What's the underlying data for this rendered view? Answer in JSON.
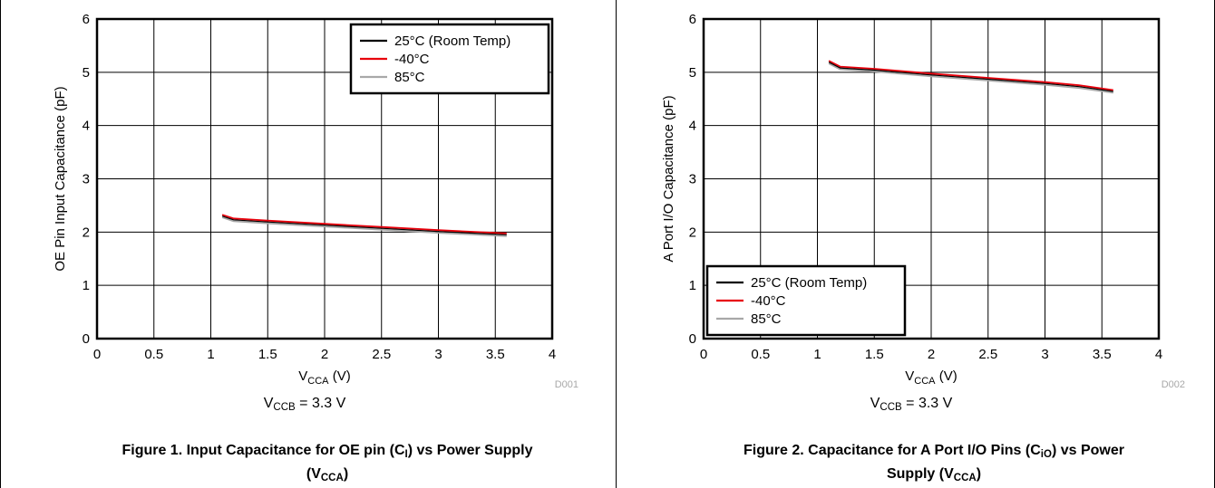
{
  "charts": [
    {
      "panel_id": "panel-1",
      "caption_pre": "Figure 1. Input Capacitance for OE pin (C",
      "caption_sub": "I",
      "caption_mid": ") vs Power Supply",
      "caption_l2_pre": "(V",
      "caption_l2_sub": "CCA",
      "caption_l2_post": ")",
      "note_pre": "V",
      "note_sub": "CCB",
      "note_post": " = 3.3 V",
      "code": "D001"
    },
    {
      "panel_id": "panel-2",
      "caption_pre": "Figure 2. Capacitance for A Port I/O Pins (C",
      "caption_sub": "iO",
      "caption_mid": ") vs Power",
      "caption_l2_pre": "Supply (V",
      "caption_l2_sub": "CCA",
      "caption_l2_post": ")",
      "note_pre": "V",
      "note_sub": "CCB",
      "note_post": " = 3.3 V",
      "code": "D002"
    }
  ],
  "chart_data": [
    {
      "type": "line",
      "ylabel": "OE Pin Input Capacitance (pF)",
      "xlabel_pre": "V",
      "xlabel_sub": "CCA",
      "xlabel_post": " (V)",
      "xlim": [
        0,
        4
      ],
      "ylim": [
        0,
        6
      ],
      "xticks": [
        "0",
        "0.5",
        "1",
        "1.5",
        "2",
        "2.5",
        "3",
        "3.5",
        "4"
      ],
      "yticks": [
        "0",
        "1",
        "2",
        "3",
        "4",
        "5",
        "6"
      ],
      "grid": true,
      "legend_position": "top-right",
      "series": [
        {
          "name": "25°C (Room Temp)",
          "color": "#000000",
          "x": [
            1.1,
            1.2,
            1.5,
            2.0,
            2.5,
            3.0,
            3.3,
            3.6
          ],
          "y": [
            2.3,
            2.23,
            2.19,
            2.13,
            2.07,
            2.01,
            1.98,
            1.95
          ]
        },
        {
          "name": "-40°C",
          "color": "#e8000b",
          "x": [
            1.1,
            1.2,
            1.5,
            2.0,
            2.5,
            3.0,
            3.3,
            3.6
          ],
          "y": [
            2.3,
            2.23,
            2.19,
            2.13,
            2.07,
            2.01,
            1.98,
            1.95
          ]
        },
        {
          "name": "85°C",
          "color": "#a8a8a8",
          "x": [
            1.1,
            1.2,
            1.5,
            2.0,
            2.5,
            3.0,
            3.3,
            3.6
          ],
          "y": [
            2.3,
            2.23,
            2.19,
            2.13,
            2.07,
            2.01,
            1.98,
            1.95
          ]
        }
      ]
    },
    {
      "type": "line",
      "ylabel": "A Port I/O Capacitance (pF)",
      "xlabel_pre": "V",
      "xlabel_sub": "CCA",
      "xlabel_post": " (V)",
      "xlim": [
        0,
        4
      ],
      "ylim": [
        0,
        6
      ],
      "xticks": [
        "0",
        "0.5",
        "1",
        "1.5",
        "2",
        "2.5",
        "3",
        "3.5",
        "4"
      ],
      "yticks": [
        "0",
        "1",
        "2",
        "3",
        "4",
        "5",
        "6"
      ],
      "grid": true,
      "legend_position": "bottom-left",
      "series": [
        {
          "name": "25°C (Room Temp)",
          "color": "#000000",
          "x": [
            1.1,
            1.2,
            1.5,
            2.0,
            2.5,
            3.0,
            3.3,
            3.6
          ],
          "y": [
            5.19,
            5.08,
            5.04,
            4.95,
            4.87,
            4.79,
            4.73,
            4.64
          ]
        },
        {
          "name": "-40°C",
          "color": "#e8000b",
          "x": [
            1.1,
            1.2,
            1.5,
            2.0,
            2.5,
            3.0,
            3.3,
            3.6
          ],
          "y": [
            5.19,
            5.08,
            5.04,
            4.95,
            4.87,
            4.79,
            4.73,
            4.64
          ]
        },
        {
          "name": "85°C",
          "color": "#a8a8a8",
          "x": [
            1.1,
            1.2,
            1.5,
            2.0,
            2.5,
            3.0,
            3.3,
            3.6
          ],
          "y": [
            5.19,
            5.08,
            5.04,
            4.95,
            4.87,
            4.79,
            4.73,
            4.64
          ]
        }
      ]
    }
  ]
}
